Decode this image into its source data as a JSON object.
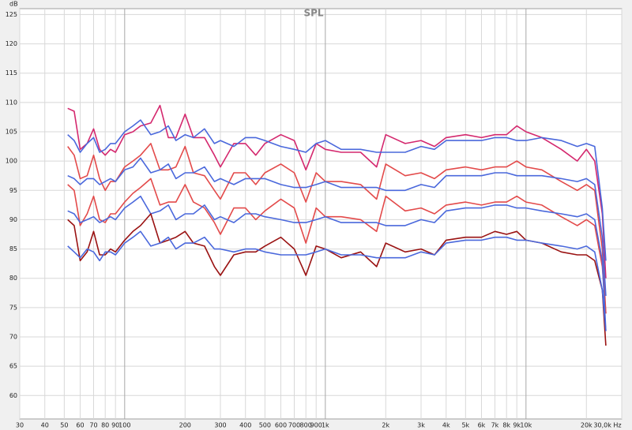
{
  "chart_data": {
    "type": "line",
    "title": "SPL",
    "y_label": "dB",
    "log_x": true,
    "grid": true,
    "x": [
      52,
      56,
      60,
      65,
      70,
      75,
      80,
      85,
      90,
      100,
      110,
      120,
      135,
      150,
      165,
      180,
      200,
      220,
      250,
      280,
      300,
      350,
      400,
      450,
      500,
      600,
      700,
      800,
      900,
      1000,
      1200,
      1500,
      1800,
      2000,
      2500,
      3000,
      3500,
      4000,
      5000,
      6000,
      7000,
      8000,
      9000,
      10000,
      12000,
      15000,
      18000,
      20000,
      22000,
      24000,
      25000
    ],
    "series": [
      {
        "color": "#d4286e",
        "values": [
          109,
          108.5,
          102,
          103,
          105.5,
          102,
          101,
          102,
          101.5,
          104.5,
          105,
          106,
          106.5,
          109.5,
          104,
          104,
          108,
          104,
          104,
          101,
          99,
          103,
          103,
          101,
          103,
          104.5,
          103.5,
          98.5,
          103,
          102,
          101.5,
          101.5,
          99,
          104.5,
          103,
          103.5,
          102.5,
          104,
          104.5,
          104,
          104.5,
          104.5,
          106,
          105,
          104,
          102,
          100,
          102,
          100,
          91,
          80
        ]
      },
      {
        "color": "#4a68dc",
        "values": [
          104.5,
          103.5,
          101.5,
          103,
          104,
          101.5,
          102,
          103,
          103,
          105,
          106,
          107,
          104.5,
          105,
          106,
          103.5,
          104.5,
          104,
          105.5,
          103,
          103.5,
          102.5,
          104,
          104,
          103.5,
          102.5,
          102,
          101.5,
          103,
          103.5,
          102,
          102,
          101.5,
          101.5,
          101.5,
          102.5,
          102,
          103.5,
          103.5,
          103.5,
          104,
          104,
          103.5,
          103.5,
          104,
          103.5,
          102.5,
          103,
          102.5,
          92,
          83
        ]
      },
      {
        "color": "#e34a4a",
        "values": [
          102.5,
          101,
          97,
          97.5,
          101,
          97,
          95,
          96.5,
          96.5,
          99,
          100,
          101,
          103,
          98.5,
          98.5,
          99,
          102.5,
          98,
          97.5,
          95,
          93.5,
          98,
          98,
          96,
          98,
          99.5,
          98,
          93,
          98,
          96.5,
          96.5,
          96,
          93.5,
          99.5,
          97.5,
          98,
          97,
          98.5,
          99,
          98.5,
          99,
          99,
          100,
          99,
          98.5,
          96.5,
          95,
          96,
          95,
          85,
          74
        ]
      },
      {
        "color": "#4a68dc",
        "values": [
          97.5,
          97,
          96,
          97,
          97,
          96,
          96.5,
          97,
          96.5,
          98.5,
          99,
          100.5,
          98,
          98.5,
          99.5,
          97,
          98,
          98,
          99,
          96.5,
          97,
          96,
          97,
          97,
          97,
          96,
          95.5,
          95.5,
          96,
          96.5,
          95.5,
          95.5,
          95.5,
          95,
          95,
          96,
          95.5,
          97.5,
          97.5,
          97.5,
          98,
          98,
          97.5,
          97.5,
          97.5,
          97,
          96.5,
          97,
          96,
          87,
          77
        ]
      },
      {
        "color": "#e34a4a",
        "values": [
          96,
          95,
          89,
          91,
          94,
          90,
          89.5,
          91,
          91,
          93,
          94.5,
          95.5,
          97,
          92.5,
          93,
          93,
          96,
          93,
          92,
          89.5,
          87.5,
          92,
          92,
          90,
          91.5,
          93.5,
          92,
          86,
          92,
          90.5,
          90.5,
          90,
          88,
          94,
          91.5,
          92,
          91,
          92.5,
          93,
          92.5,
          93,
          93,
          94,
          93,
          92.5,
          90.5,
          89,
          90,
          89,
          82,
          74
        ]
      },
      {
        "color": "#4a68dc",
        "values": [
          91.5,
          91,
          89.5,
          90,
          90.5,
          89.5,
          90,
          90.5,
          90,
          92,
          93,
          94,
          91,
          91.5,
          92.5,
          90,
          91,
          91,
          92.5,
          90,
          90.5,
          89.5,
          91,
          91,
          90.5,
          90,
          89.5,
          89.5,
          90,
          90.5,
          89.5,
          89.5,
          89.5,
          89,
          89,
          90,
          89.5,
          91.5,
          92,
          92,
          92.5,
          92.5,
          92,
          92,
          91.5,
          91,
          90.5,
          91,
          90,
          83,
          71
        ]
      },
      {
        "color": "#9a1212",
        "values": [
          90,
          89,
          83,
          84.5,
          88,
          84,
          84,
          85,
          84.5,
          86.5,
          88,
          89,
          91,
          86,
          86.5,
          87,
          88,
          86,
          85.5,
          82,
          80.5,
          84,
          84.5,
          84.5,
          85.5,
          87,
          85,
          80.5,
          85.5,
          85,
          83.5,
          84.5,
          82,
          86,
          84.5,
          85,
          84,
          86.5,
          87,
          87,
          88,
          87.5,
          88,
          86.5,
          86,
          84.5,
          84,
          84,
          83,
          78,
          68.5
        ]
      },
      {
        "color": "#4a68dc",
        "values": [
          85.5,
          84.5,
          83.5,
          85,
          84.5,
          83,
          84.5,
          84.5,
          84,
          86,
          87,
          88,
          85.5,
          86,
          87,
          85,
          86,
          86,
          87,
          85,
          85,
          84.5,
          85,
          85,
          84.5,
          84,
          84,
          84,
          84.5,
          85,
          84,
          84,
          83.5,
          83.5,
          83.5,
          84.5,
          84,
          86,
          86.5,
          86.5,
          87,
          87,
          86.5,
          86.5,
          86,
          85.5,
          85,
          85.5,
          84.5,
          78,
          71
        ]
      }
    ],
    "xlim": [
      30,
      30000
    ],
    "ylim": [
      56,
      126
    ],
    "xticks": [
      30,
      40,
      50,
      60,
      70,
      80,
      90,
      100,
      200,
      300,
      400,
      500,
      600,
      700,
      800,
      900,
      {
        "value": 1000,
        "label": "1k"
      },
      {
        "value": 2000,
        "label": "2k"
      },
      {
        "value": 3000,
        "label": "3k"
      },
      {
        "value": 4000,
        "label": "4k"
      },
      {
        "value": 5000,
        "label": "5k"
      },
      {
        "value": 6000,
        "label": "6k"
      },
      {
        "value": 7000,
        "label": "7k"
      },
      {
        "value": 8000,
        "label": "8k"
      },
      {
        "value": 9000,
        "label": "9k"
      },
      {
        "value": 10000,
        "label": "10k"
      },
      {
        "value": 20000,
        "label": "20k"
      },
      {
        "value": 30000,
        "label": "30,0k Hz"
      }
    ],
    "yticks": [
      60,
      65,
      70,
      75,
      80,
      85,
      90,
      95,
      100,
      105,
      110,
      115,
      120,
      125
    ]
  }
}
